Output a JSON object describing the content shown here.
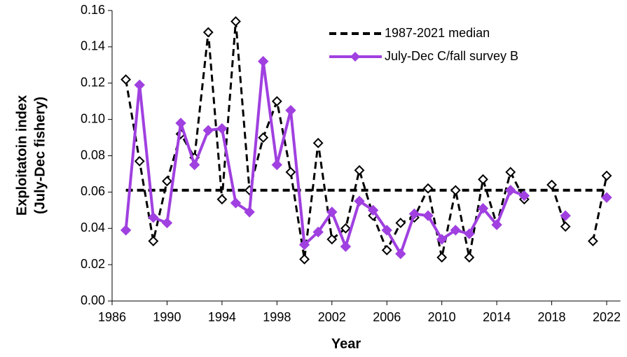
{
  "chart_data": {
    "type": "line",
    "xlabel": "Year",
    "ylabel": [
      "Exploitatoin index",
      "(July-Dec fishery)"
    ],
    "x": [
      1987,
      1988,
      1989,
      1990,
      1991,
      1992,
      1993,
      1994,
      1995,
      1996,
      1997,
      1998,
      1999,
      2000,
      2001,
      2002,
      2003,
      2004,
      2005,
      2006,
      2007,
      2008,
      2009,
      2010,
      2011,
      2012,
      2013,
      2014,
      2015,
      2016,
      2017,
      2018,
      2019,
      2020,
      2021,
      2022
    ],
    "series": [
      {
        "name": "1987-2021 median",
        "color": "#000000",
        "dash": true,
        "width": 4,
        "marker": "none",
        "values": [
          0.061,
          0.061,
          0.061,
          0.061,
          0.061,
          0.061,
          0.061,
          0.061,
          0.061,
          0.061,
          0.061,
          0.061,
          0.061,
          0.061,
          0.061,
          0.061,
          0.061,
          0.061,
          0.061,
          0.061,
          0.061,
          0.061,
          0.061,
          0.061,
          0.061,
          0.061,
          0.061,
          0.061,
          0.061,
          0.061,
          0.061,
          0.061,
          0.061,
          0.061,
          0.061,
          0.061
        ]
      },
      {
        "color": "#000000",
        "dash": true,
        "width": 3,
        "marker": "open-diamond",
        "values": [
          0.122,
          0.077,
          0.033,
          0.066,
          0.092,
          0.079,
          0.148,
          0.056,
          0.154,
          0.061,
          0.09,
          0.11,
          0.071,
          0.023,
          0.087,
          0.034,
          0.04,
          0.072,
          0.047,
          0.028,
          0.043,
          0.046,
          0.062,
          0.024,
          0.061,
          0.024,
          0.067,
          0.042,
          0.071,
          0.056,
          null,
          0.064,
          0.041,
          null,
          0.033,
          0.069
        ]
      },
      {
        "name": "July-Dec C/fall survey B",
        "color": "#a040e0",
        "dash": false,
        "width": 4,
        "marker": "diamond",
        "values": [
          0.039,
          0.119,
          0.046,
          0.043,
          0.098,
          0.075,
          0.094,
          0.095,
          0.054,
          0.049,
          0.132,
          0.075,
          0.105,
          0.031,
          0.038,
          0.049,
          0.03,
          0.055,
          0.05,
          0.039,
          0.026,
          0.048,
          0.047,
          0.034,
          0.039,
          0.037,
          0.051,
          0.042,
          0.061,
          0.058,
          null,
          null,
          0.047,
          null,
          null,
          0.057
        ]
      }
    ],
    "xlim": [
      1986,
      2023
    ],
    "xticks": [
      1986,
      1990,
      1994,
      1998,
      2002,
      2006,
      2010,
      2014,
      2018,
      2022
    ],
    "ylim": [
      0,
      0.16
    ],
    "yticks": [
      {
        "value": 0,
        "label": "0.00"
      },
      {
        "value": 0.02,
        "label": "0.02"
      },
      {
        "value": 0.04,
        "label": "0.04"
      },
      {
        "value": 0.06,
        "label": "0.06"
      },
      {
        "value": 0.08,
        "label": "0.08"
      },
      {
        "value": 0.1,
        "label": "0.10"
      },
      {
        "value": 0.12,
        "label": "0.12"
      },
      {
        "value": 0.14,
        "label": "0.14"
      },
      {
        "value": 0.16,
        "label": "0.16"
      }
    ],
    "grid": false,
    "legend": "upper-right"
  }
}
